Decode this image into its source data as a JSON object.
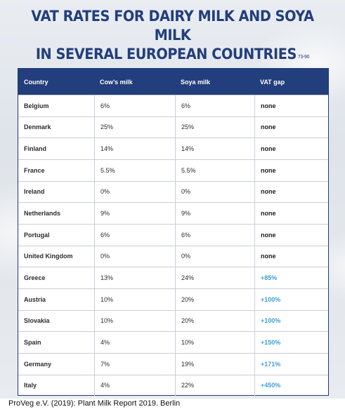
{
  "title": {
    "line1": "VAT RATES FOR DAIRY MILK AND SOYA MILK",
    "line2": "IN SEVERAL EUROPEAN COUNTRIES",
    "reference": "73-90"
  },
  "table": {
    "headers": [
      "Country",
      "Cow’s milk",
      "Soya milk",
      "VAT gap"
    ],
    "rows": [
      [
        "Belgium",
        "6%",
        "6%",
        "none"
      ],
      [
        "Denmark",
        "25%",
        "25%",
        "none"
      ],
      [
        "Finland",
        "14%",
        "14%",
        "none"
      ],
      [
        "France",
        "5.5%",
        "5.5%",
        "none"
      ],
      [
        "Ireland",
        "0%",
        "0%",
        "none"
      ],
      [
        "Netherlands",
        "9%",
        "9%",
        "none"
      ],
      [
        "Portugal",
        "6%",
        "6%",
        "none"
      ],
      [
        "United Kingdom",
        "0%",
        "0%",
        "none"
      ],
      [
        "Greece",
        "13%",
        "24%",
        "+85%"
      ],
      [
        "Austria",
        "10%",
        "20%",
        "+100%"
      ],
      [
        "Slovakia",
        "10%",
        "20%",
        "+100%"
      ],
      [
        "Spain",
        "4%",
        "10%",
        "+150%"
      ],
      [
        "Germany",
        "7%",
        "19%",
        "+171%"
      ],
      [
        "Italy",
        "4%",
        "22%",
        "+450%"
      ]
    ]
  },
  "caption": "ProVeg e.V. (2019): Plant Milk Report 2019. Berlin",
  "colors": {
    "title": "#233e7c",
    "header_bg": "#233e7c",
    "gap_positive": "#3ea0d8"
  }
}
